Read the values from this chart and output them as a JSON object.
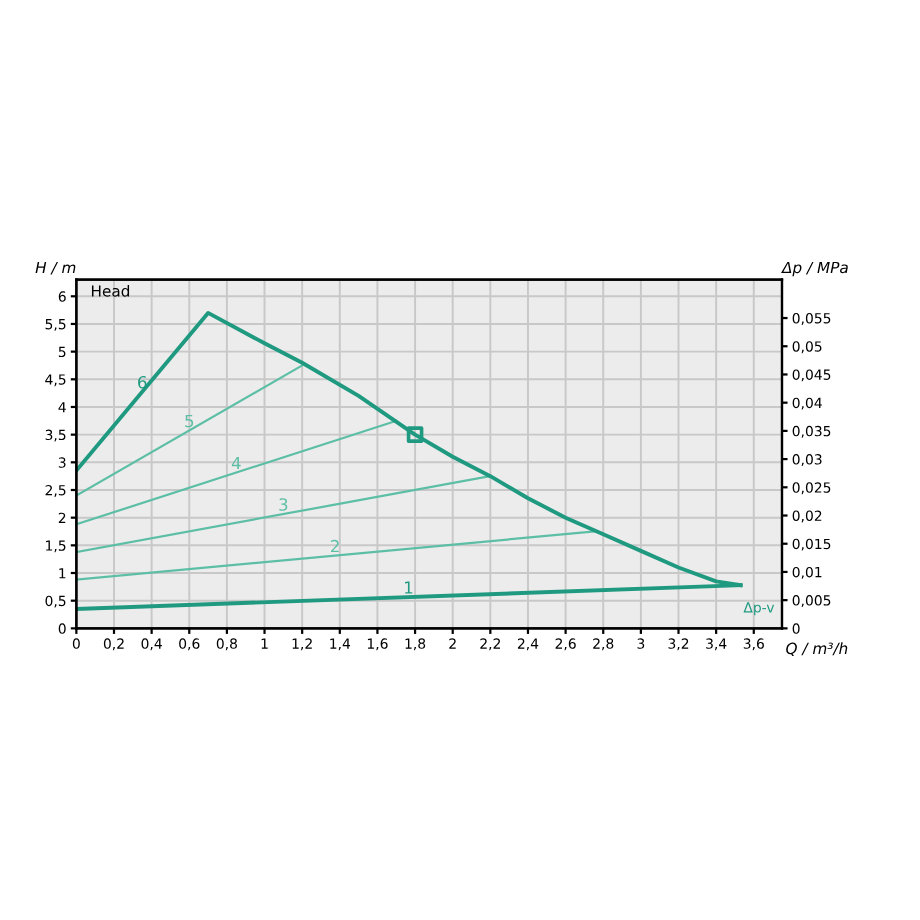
{
  "chart_data": {
    "type": "line",
    "title": "Head",
    "xlabel": "Q / m³/h",
    "ylabel": "H / m",
    "y2label": "Δp / MPa",
    "xlim": [
      0,
      3.75
    ],
    "ylim": [
      0,
      6.3
    ],
    "y2lim": [
      0,
      0.0618
    ],
    "xticks": [
      0,
      {
        "value": 0.2,
        "label": "0,2"
      },
      {
        "value": 0.4,
        "label": "0,4"
      },
      {
        "value": 0.6,
        "label": "0,6"
      },
      {
        "value": 0.8,
        "label": "0,8"
      },
      1,
      {
        "value": 1.2,
        "label": "1,2"
      },
      {
        "value": 1.4,
        "label": "1,4"
      },
      {
        "value": 1.6,
        "label": "1,6"
      },
      {
        "value": 1.8,
        "label": "1,8"
      },
      2,
      {
        "value": 2.2,
        "label": "2,2"
      },
      {
        "value": 2.4,
        "label": "2,4"
      },
      {
        "value": 2.6,
        "label": "2,6"
      },
      {
        "value": 2.8,
        "label": "2,8"
      },
      3,
      {
        "value": 3.2,
        "label": "3,2"
      },
      {
        "value": 3.4,
        "label": "3,4"
      },
      {
        "value": 3.6,
        "label": "3,6"
      }
    ],
    "yticks": [
      0,
      {
        "value": 0.5,
        "label": "0,5"
      },
      1,
      {
        "value": 1.5,
        "label": "1,5"
      },
      2,
      {
        "value": 2.5,
        "label": "2,5"
      },
      3,
      {
        "value": 3.5,
        "label": "3,5"
      },
      4,
      {
        "value": 4.5,
        "label": "4,5"
      },
      5,
      {
        "value": 5.5,
        "label": "5,5"
      },
      6
    ],
    "y2ticks": [
      0,
      {
        "value": 0.005,
        "label": "0,005"
      },
      {
        "value": 0.01,
        "label": "0,01"
      },
      {
        "value": 0.015,
        "label": "0,015"
      },
      {
        "value": 0.02,
        "label": "0,02"
      },
      {
        "value": 0.025,
        "label": "0,025"
      },
      {
        "value": 0.03,
        "label": "0,03"
      },
      {
        "value": 0.035,
        "label": "0,035"
      },
      {
        "value": 0.04,
        "label": "0,04"
      },
      {
        "value": 0.045,
        "label": "0,045"
      },
      {
        "value": 0.05,
        "label": "0,05"
      },
      {
        "value": 0.055,
        "label": "0,055"
      }
    ],
    "grid": true,
    "legend": false,
    "line_style": "solid",
    "marker": "none",
    "series": [
      {
        "name": "1",
        "color": "#1f9a80",
        "x": [
          0,
          3.53
        ],
        "values": [
          0.35,
          0.78
        ]
      },
      {
        "name": "2",
        "color": "#5cbfa5",
        "x": [
          0,
          2.75
        ],
        "values": [
          0.88,
          1.75
        ]
      },
      {
        "name": "3",
        "color": "#5cbfa5",
        "x": [
          0,
          2.2
        ],
        "values": [
          1.38,
          2.75
        ]
      },
      {
        "name": "4",
        "color": "#5cbfa5",
        "x": [
          0,
          1.7
        ],
        "values": [
          1.88,
          3.75
        ]
      },
      {
        "name": "5",
        "color": "#5cbfa5",
        "x": [
          0,
          1.2
        ],
        "values": [
          2.4,
          4.75
        ]
      },
      {
        "name": "6",
        "color": "#1f9a80",
        "x": [
          0,
          0.7,
          1.0,
          1.2,
          1.5,
          1.8,
          2.0,
          2.2,
          2.4,
          2.6,
          2.8,
          3.0,
          3.2,
          3.4,
          3.53
        ],
        "values": [
          2.85,
          5.7,
          5.15,
          4.8,
          4.2,
          3.5,
          3.1,
          2.75,
          2.35,
          2.0,
          1.7,
          1.4,
          1.1,
          0.85,
          0.78
        ]
      },
      {
        "type": "scatter",
        "marker": "square",
        "color": "#1f9a80",
        "x": [
          1.8
        ],
        "values": [
          3.5
        ]
      }
    ],
    "annotations": [
      {
        "text": "Δp-v",
        "x": 3.53,
        "y": 0.78
      }
    ]
  }
}
